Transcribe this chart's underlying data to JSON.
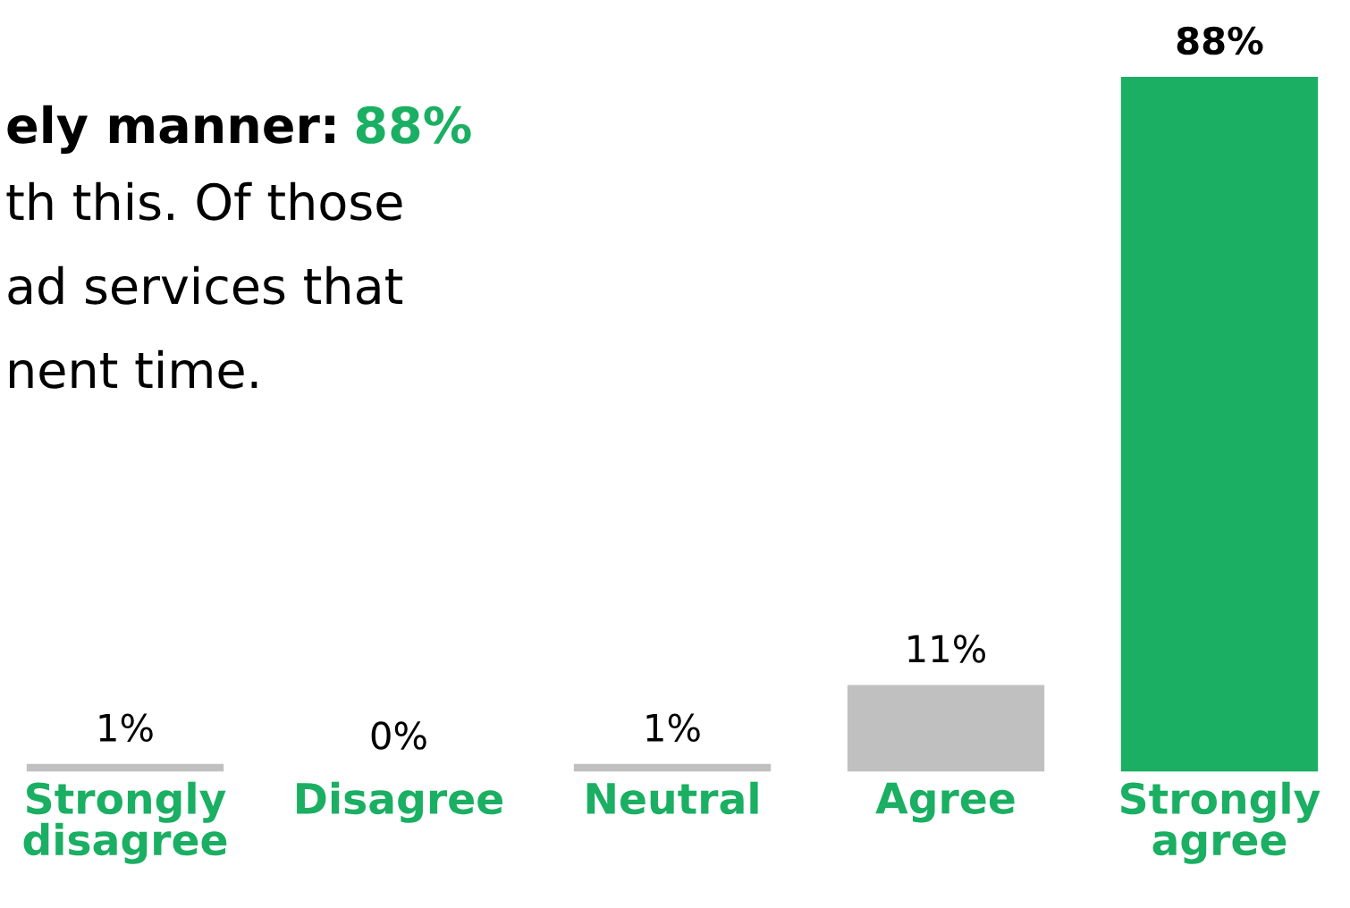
{
  "chart_data": {
    "type": "bar",
    "categories": [
      "Strongly\ndisagree",
      "Disagree",
      "Neutral",
      "Agree",
      "Strongly\nagree"
    ],
    "values": [
      1,
      0,
      1,
      11,
      88
    ],
    "colors": [
      "#c0c0c0",
      "#c0c0c0",
      "#c0c0c0",
      "#c0c0c0",
      "#1aaf62"
    ],
    "value_labels": [
      "1%",
      "0%",
      "1%",
      "11%",
      "88%"
    ],
    "annotations": [
      "ely manner:",
      "88%",
      "th this. Of those",
      "ad services that",
      "nent time."
    ],
    "grid": false,
    "legend": false
  }
}
